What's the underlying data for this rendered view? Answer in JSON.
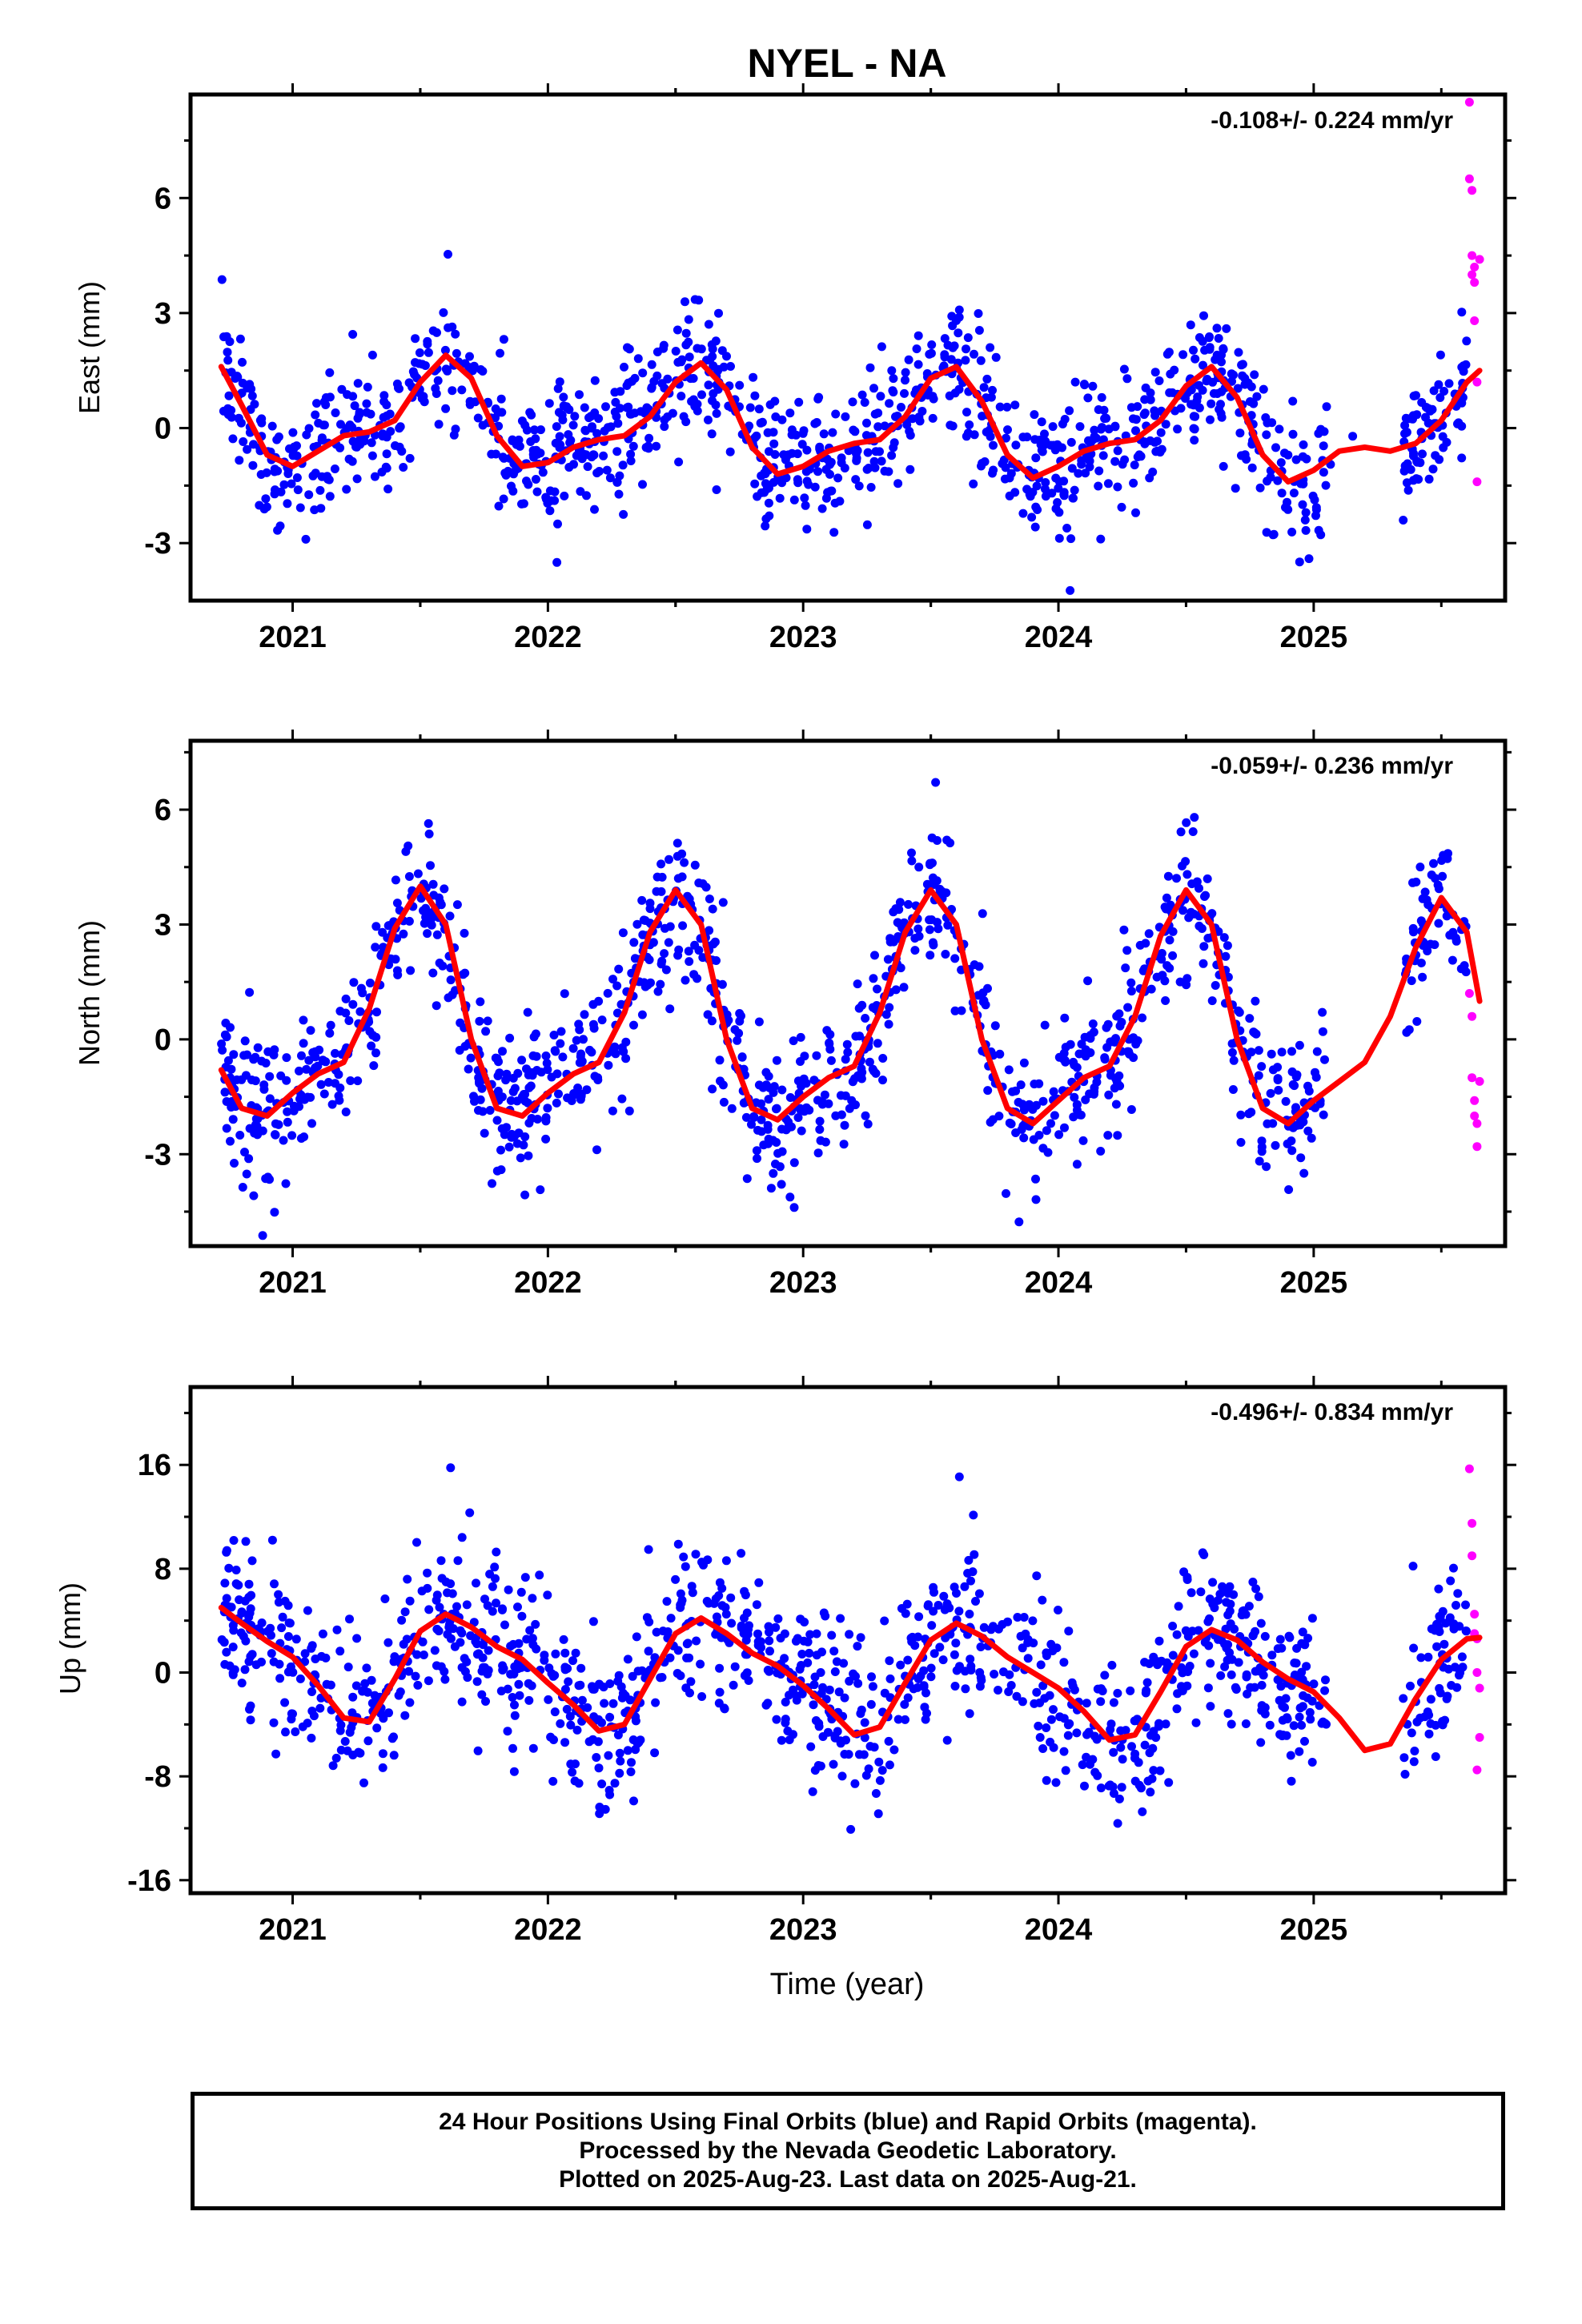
{
  "title": "NYEL - NA",
  "xlabel": "Time (year)",
  "footer": {
    "line1": "24 Hour Positions Using Final Orbits (blue) and Rapid Orbits (magenta).",
    "line2": "Processed by the Nevada Geodetic Laboratory.",
    "line3": "Plotted on 2025-Aug-23. Last data on 2025-Aug-21."
  },
  "colors": {
    "final": "#0000ff",
    "rapid": "#ff00ff",
    "fit": "#ff0000",
    "axis": "#000000"
  },
  "chart_data": [
    {
      "type": "scatter",
      "panel": "east",
      "ylabel": "East (mm)",
      "rate": "-0.108+/- 0.224 mm/yr",
      "xlim": [
        2020.6,
        2025.75
      ],
      "ylim": [
        -4.5,
        8.7
      ],
      "xticks": [
        2021,
        2022,
        2023,
        2024,
        2025
      ],
      "yticks": [
        -3,
        0,
        3,
        6
      ],
      "fit_curve": {
        "x": [
          2020.72,
          2020.8,
          2020.9,
          2021.0,
          2021.1,
          2021.2,
          2021.3,
          2021.4,
          2021.5,
          2021.6,
          2021.7,
          2021.8,
          2021.9,
          2022.0,
          2022.1,
          2022.2,
          2022.3,
          2022.4,
          2022.5,
          2022.6,
          2022.7,
          2022.8,
          2022.9,
          2023.0,
          2023.1,
          2023.2,
          2023.3,
          2023.4,
          2023.5,
          2023.6,
          2023.7,
          2023.8,
          2023.9,
          2024.0,
          2024.1,
          2024.2,
          2024.3,
          2024.4,
          2024.5,
          2024.6,
          2024.7,
          2024.8,
          2024.9,
          2025.0,
          2025.1,
          2025.2,
          2025.3,
          2025.4,
          2025.5,
          2025.6,
          2025.65
        ],
        "y": [
          1.6,
          0.6,
          -0.7,
          -1.0,
          -0.6,
          -0.2,
          -0.1,
          0.2,
          1.2,
          1.9,
          1.3,
          -0.2,
          -1.0,
          -0.9,
          -0.5,
          -0.3,
          -0.2,
          0.3,
          1.2,
          1.7,
          1.0,
          -0.5,
          -1.2,
          -1.0,
          -0.6,
          -0.4,
          -0.3,
          0.3,
          1.3,
          1.6,
          0.7,
          -0.7,
          -1.3,
          -1.0,
          -0.6,
          -0.4,
          -0.3,
          0.2,
          1.1,
          1.6,
          0.8,
          -0.7,
          -1.4,
          -1.1,
          -0.6,
          -0.5,
          -0.6,
          -0.4,
          0.2,
          1.2,
          1.5
        ]
      },
      "rapid_points": {
        "x": [
          2025.61,
          2025.61,
          2025.62,
          2025.62,
          2025.62,
          2025.63,
          2025.63,
          2025.63,
          2025.64,
          2025.64,
          2025.65
        ],
        "y": [
          8.5,
          6.5,
          6.2,
          4.5,
          4.0,
          3.8,
          4.2,
          2.8,
          1.2,
          -1.4,
          4.4
        ]
      },
      "final_points": {
        "count": 1260,
        "x_range": [
          2020.72,
          2025.6
        ],
        "gap": [
          2025.05,
          2025.35
        ],
        "scatter_sd": 0.85
      }
    },
    {
      "type": "scatter",
      "panel": "north",
      "ylabel": "North (mm)",
      "rate": "-0.059+/- 0.236 mm/yr",
      "xlim": [
        2020.6,
        2025.75
      ],
      "ylim": [
        -5.4,
        7.8
      ],
      "xticks": [
        2021,
        2022,
        2023,
        2024,
        2025
      ],
      "yticks": [
        -3,
        0,
        3,
        6
      ],
      "fit_curve": {
        "x": [
          2020.72,
          2020.8,
          2020.9,
          2021.0,
          2021.1,
          2021.2,
          2021.3,
          2021.4,
          2021.5,
          2021.6,
          2021.7,
          2021.8,
          2021.9,
          2022.0,
          2022.1,
          2022.2,
          2022.3,
          2022.4,
          2022.5,
          2022.6,
          2022.7,
          2022.8,
          2022.9,
          2023.0,
          2023.1,
          2023.2,
          2023.3,
          2023.4,
          2023.5,
          2023.6,
          2023.7,
          2023.8,
          2023.9,
          2024.0,
          2024.1,
          2024.2,
          2024.3,
          2024.4,
          2024.5,
          2024.6,
          2024.7,
          2024.8,
          2024.9,
          2025.0,
          2025.1,
          2025.2,
          2025.3,
          2025.4,
          2025.5,
          2025.6,
          2025.65
        ],
        "y": [
          -0.8,
          -1.8,
          -2.0,
          -1.4,
          -0.9,
          -0.6,
          0.8,
          2.9,
          4.0,
          3.0,
          0.0,
          -1.8,
          -2.0,
          -1.4,
          -0.9,
          -0.6,
          0.7,
          2.8,
          3.9,
          3.0,
          0.0,
          -1.8,
          -2.1,
          -1.5,
          -1.0,
          -0.7,
          0.7,
          2.8,
          3.9,
          3.0,
          0.0,
          -1.8,
          -2.2,
          -1.6,
          -1.0,
          -0.7,
          0.6,
          2.7,
          3.9,
          3.0,
          0.0,
          -1.8,
          -2.2,
          -1.6,
          -1.1,
          -0.6,
          0.6,
          2.4,
          3.7,
          2.8,
          1.0
        ]
      },
      "rapid_points": {
        "x": [
          2025.61,
          2025.62,
          2025.62,
          2025.63,
          2025.63,
          2025.64,
          2025.64,
          2025.65
        ],
        "y": [
          1.2,
          0.6,
          -1.0,
          -1.6,
          -2.0,
          -2.2,
          -2.8,
          -1.1
        ]
      },
      "final_points": {
        "count": 1260,
        "x_range": [
          2020.72,
          2025.6
        ],
        "gap": [
          2025.05,
          2025.35
        ],
        "scatter_sd": 0.95
      }
    },
    {
      "type": "scatter",
      "panel": "up",
      "ylabel": "Up (mm)",
      "rate": "-0.496+/- 0.834 mm/yr",
      "xlim": [
        2020.6,
        2025.75
      ],
      "ylim": [
        -17.0,
        22.0
      ],
      "xticks": [
        2021,
        2022,
        2023,
        2024,
        2025
      ],
      "yticks": [
        -16,
        -8,
        0,
        8,
        16
      ],
      "fit_curve": {
        "x": [
          2020.72,
          2020.8,
          2020.9,
          2021.0,
          2021.1,
          2021.2,
          2021.3,
          2021.4,
          2021.5,
          2021.6,
          2021.7,
          2021.8,
          2021.9,
          2022.0,
          2022.1,
          2022.2,
          2022.3,
          2022.4,
          2022.5,
          2022.6,
          2022.7,
          2022.8,
          2022.9,
          2023.0,
          2023.1,
          2023.2,
          2023.3,
          2023.4,
          2023.5,
          2023.6,
          2023.7,
          2023.8,
          2023.9,
          2024.0,
          2024.1,
          2024.2,
          2024.3,
          2024.4,
          2024.5,
          2024.6,
          2024.7,
          2024.8,
          2024.9,
          2025.0,
          2025.1,
          2025.2,
          2025.3,
          2025.4,
          2025.5,
          2025.6,
          2025.65
        ],
        "y": [
          5.0,
          3.8,
          2.4,
          1.2,
          -1.0,
          -3.5,
          -3.8,
          -0.5,
          3.2,
          4.5,
          3.5,
          2.0,
          1.0,
          -0.8,
          -2.5,
          -4.5,
          -4.0,
          -0.5,
          3.0,
          4.2,
          3.0,
          1.5,
          0.5,
          -1.0,
          -2.8,
          -4.8,
          -4.2,
          -0.8,
          2.5,
          3.8,
          2.8,
          1.2,
          0.0,
          -1.2,
          -3.0,
          -5.2,
          -4.8,
          -1.5,
          2.0,
          3.3,
          2.5,
          0.8,
          -0.5,
          -1.5,
          -3.5,
          -6.0,
          -5.5,
          -2.0,
          1.0,
          2.6,
          2.7
        ]
      },
      "rapid_points": {
        "x": [
          2025.61,
          2025.62,
          2025.62,
          2025.63,
          2025.63,
          2025.64,
          2025.64,
          2025.65,
          2025.65,
          2025.64
        ],
        "y": [
          15.7,
          11.5,
          9.0,
          4.5,
          3.0,
          2.6,
          0.0,
          -1.2,
          -5.0,
          -7.5
        ]
      },
      "final_points": {
        "count": 1260,
        "x_range": [
          2020.72,
          2025.6
        ],
        "gap": [
          2025.05,
          2025.35
        ],
        "scatter_sd": 3.2
      }
    }
  ]
}
